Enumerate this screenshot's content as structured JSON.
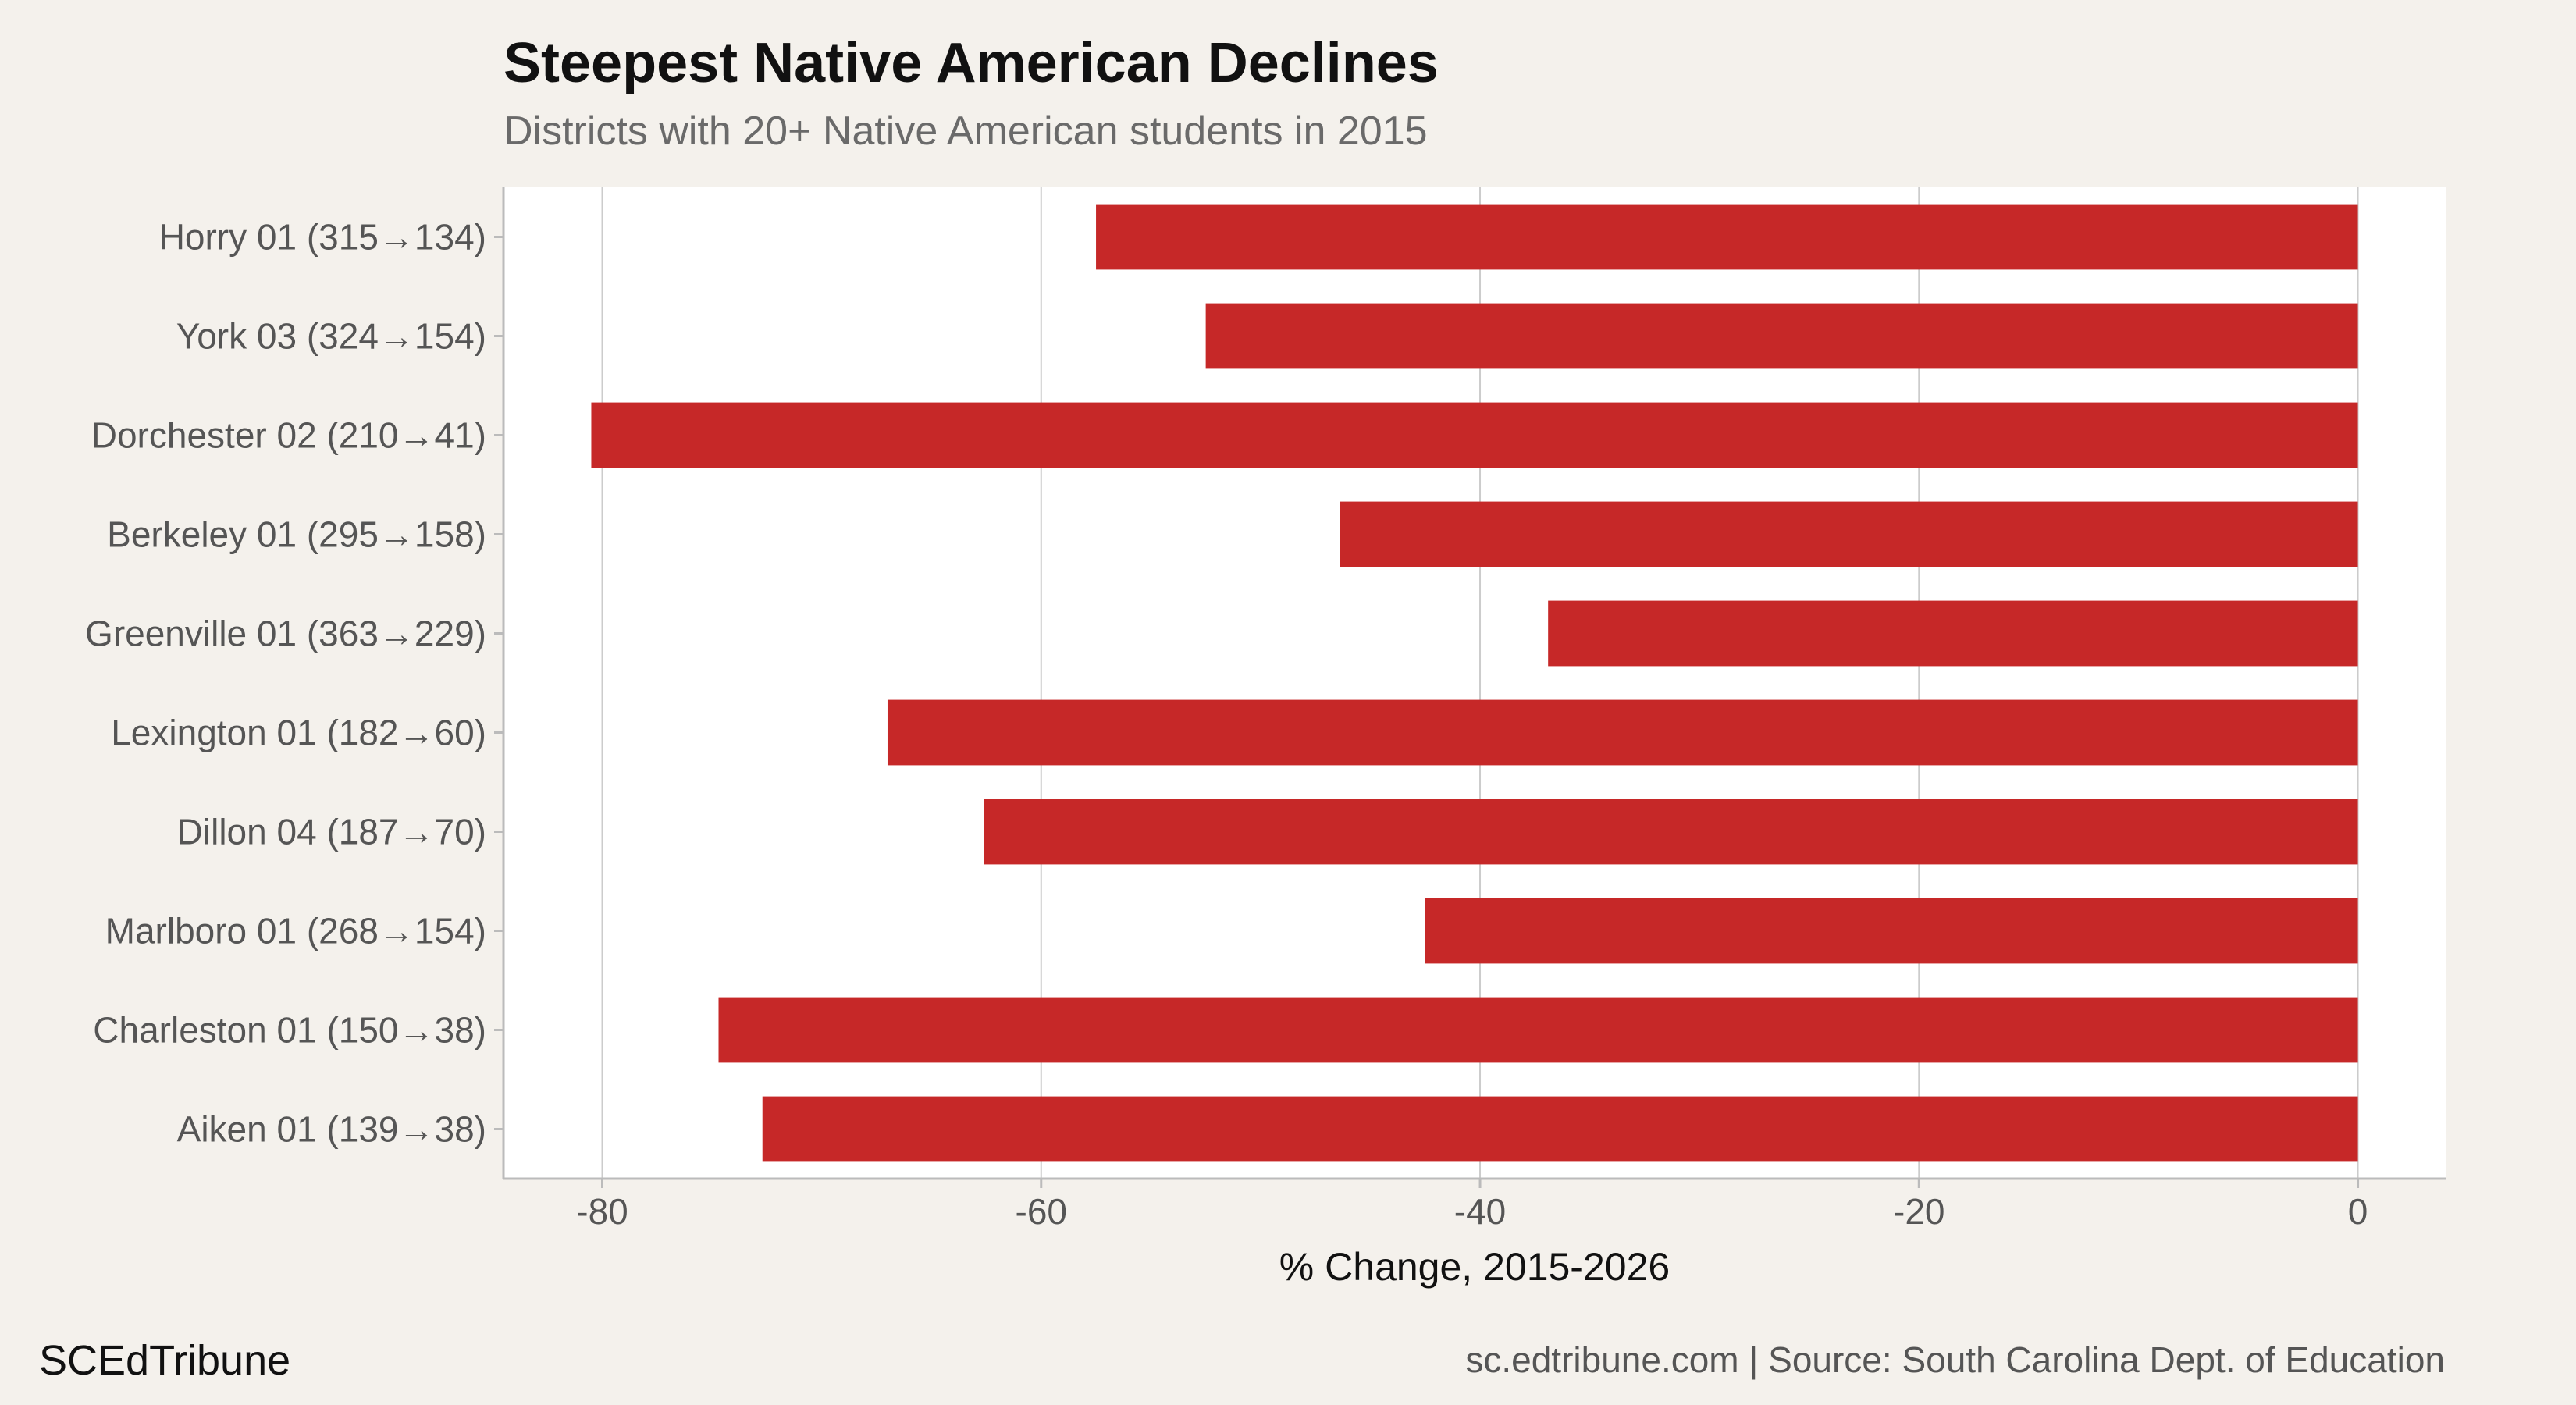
{
  "header": {
    "title": "Steepest Native American Declines",
    "subtitle": "Districts with 20+ Native American students in 2015"
  },
  "footer": {
    "brand": "SCEdTribune",
    "source": "sc.edtribune.com | Source: South Carolina Dept. of Education"
  },
  "colors": {
    "background": "#f4f1ec",
    "panel": "#ffffff",
    "bar": "#c62828",
    "grid": "#cccccc"
  },
  "chart_data": {
    "type": "bar",
    "orientation": "horizontal",
    "title": "Steepest Native American Declines",
    "subtitle": "Districts with 20+ Native American students in 2015",
    "xlabel": "% Change, 2015-2026",
    "ylabel": "",
    "xlim": [
      -84.5,
      4
    ],
    "xticks": [
      -80,
      -60,
      -40,
      -20,
      0
    ],
    "grid": true,
    "legend": "none",
    "categories": [
      "Horry 01 (315→134)",
      "York 03 (324→154)",
      "Dorchester 02 (210→41)",
      "Berkeley 01 (295→158)",
      "Greenville 01 (363→229)",
      "Lexington 01 (182→60)",
      "Dillon 04 (187→70)",
      "Marlboro 01 (268→154)",
      "Charleston 01 (150→38)",
      "Aiken 01 (139→38)"
    ],
    "values": [
      -57.5,
      -52.5,
      -80.5,
      -46.4,
      -36.9,
      -67.0,
      -62.6,
      -42.5,
      -74.7,
      -72.7
    ]
  }
}
